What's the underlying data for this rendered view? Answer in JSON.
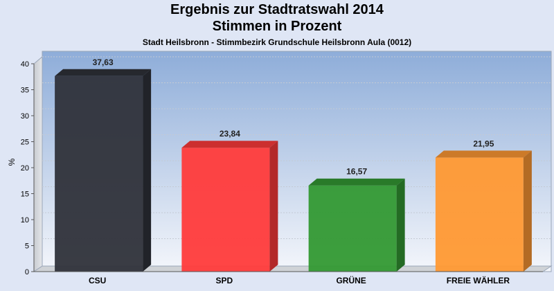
{
  "title_line1": "Ergebnis zur Stadtratswahl 2014",
  "title_line2": "Stimmen in Prozent",
  "subtitle": "Stadt Heilsbronn - Stimmbezirk Grundschule Heilsbronn Aula (0012)",
  "chart_data": {
    "type": "bar",
    "title": "Ergebnis zur Stadtratswahl 2014",
    "subtitle": "Stimmen in Prozent",
    "xlabel": "",
    "ylabel": "%",
    "categories": [
      "CSU",
      "SPD",
      "GRÜNE",
      "FREIE WÄHLER"
    ],
    "values": [
      37.63,
      23.84,
      16.57,
      21.95
    ],
    "value_labels": [
      "37,63",
      "23,84",
      "16,57",
      "21,95"
    ],
    "colors": [
      "#2f323a",
      "#ff3b3b",
      "#339933",
      "#ff9933"
    ],
    "ylim": [
      0,
      40
    ],
    "yticks": [
      0,
      5,
      10,
      15,
      20,
      25,
      30,
      35,
      40
    ],
    "grid": true,
    "legend": "none"
  }
}
